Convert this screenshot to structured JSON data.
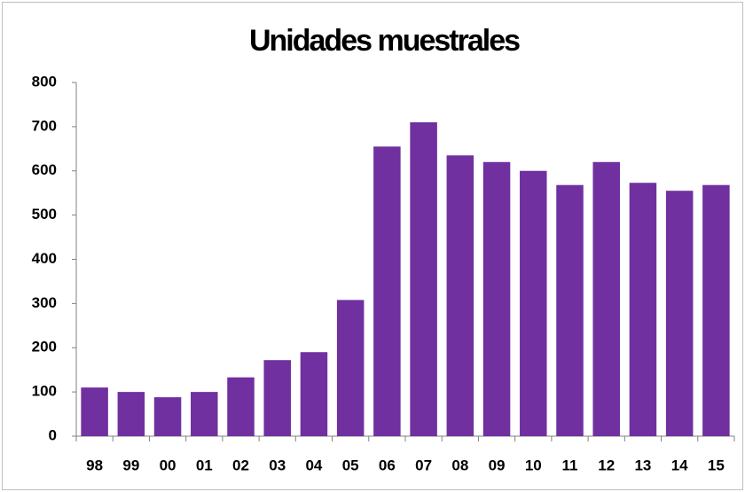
{
  "chart_data": {
    "type": "bar",
    "title": "Unidades muestrales",
    "categories": [
      "98",
      "99",
      "00",
      "01",
      "02",
      "03",
      "04",
      "05",
      "06",
      "07",
      "08",
      "09",
      "10",
      "11",
      "12",
      "13",
      "14",
      "15"
    ],
    "values": [
      110,
      100,
      88,
      100,
      133,
      172,
      190,
      308,
      655,
      710,
      635,
      620,
      600,
      568,
      620,
      573,
      555,
      568
    ],
    "color": "#7030a0",
    "ylim": [
      0,
      800
    ],
    "yticks": [
      0,
      100,
      200,
      300,
      400,
      500,
      600,
      700,
      800
    ],
    "grid": false
  }
}
